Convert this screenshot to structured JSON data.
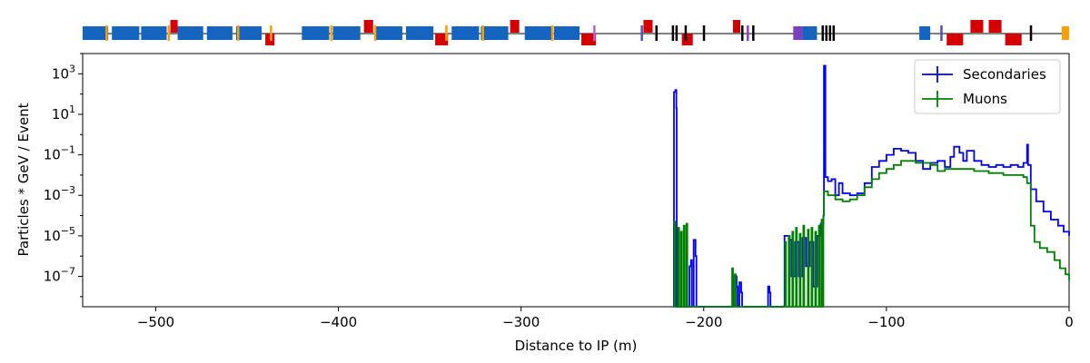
{
  "chart_data": {
    "type": "line",
    "xlabel": "Distance to IP (m)",
    "ylabel": "Particles * GeV / Event",
    "xlim": [
      -540,
      0
    ],
    "ylim_log10": [
      -8.5,
      4
    ],
    "yscale": "log",
    "grid": false,
    "legend_placement": "top-right",
    "x_ticks": [
      -500,
      -400,
      -300,
      -200,
      -100,
      0
    ],
    "x_tick_labels": [
      "−500",
      "−400",
      "−300",
      "−200",
      "−100",
      "0"
    ],
    "y_ticks_exp": [
      3,
      1,
      -1,
      -3,
      -5,
      -7
    ],
    "y_tick_base": "10",
    "y_tick_exponents": [
      "3",
      "1",
      "−1",
      "−3",
      "−5",
      "−7"
    ],
    "series": [
      {
        "name": "Secondaries",
        "color": "#0000ff",
        "points": [
          [
            -216.5,
            -8.5
          ],
          [
            -216.3,
            2.1
          ],
          [
            -215.5,
            2.2
          ],
          [
            -215.0,
            1.3
          ],
          [
            -214.8,
            -8.5
          ],
          [
            -208.0,
            -8.5
          ],
          [
            -207.8,
            -6.5
          ],
          [
            -207.0,
            -6.2
          ],
          [
            -206.5,
            -8.5
          ],
          [
            -206.0,
            -8.5
          ],
          [
            -205.5,
            -5.2
          ],
          [
            -204.5,
            -6.0
          ],
          [
            -204.0,
            -8.5
          ],
          [
            -184.0,
            -8.5
          ],
          [
            -183.8,
            -7.0
          ],
          [
            -182.0,
            -7.5
          ],
          [
            -181.5,
            -8.5
          ],
          [
            -181.0,
            -8.5
          ],
          [
            -180.5,
            -7.3
          ],
          [
            -179.5,
            -7.8
          ],
          [
            -179.0,
            -8.5
          ],
          [
            -165.0,
            -8.5
          ],
          [
            -164.8,
            -7.5
          ],
          [
            -164.0,
            -7.8
          ],
          [
            -163.5,
            -8.5
          ],
          [
            -156.0,
            -8.5
          ],
          [
            -155.8,
            -5.0
          ],
          [
            -153.0,
            -5.2
          ],
          [
            -152.0,
            -7.0
          ],
          [
            -150.0,
            -5.3
          ],
          [
            -148.0,
            -7.0
          ],
          [
            -146.0,
            -5.1
          ],
          [
            -144.0,
            -6.5
          ],
          [
            -142.0,
            -5.3
          ],
          [
            -140.0,
            -7.5
          ],
          [
            -138.0,
            -5.0
          ],
          [
            -136.0,
            -4.4
          ],
          [
            -134.5,
            -4.0
          ],
          [
            -134.2,
            3.4
          ],
          [
            -133.6,
            3.4
          ],
          [
            -133.4,
            -2.1
          ],
          [
            -132.0,
            -2.3
          ],
          [
            -130.0,
            -2.2
          ],
          [
            -128.0,
            -3.0
          ],
          [
            -126.0,
            -2.4
          ],
          [
            -124.0,
            -2.9
          ],
          [
            -120.0,
            -3.0
          ],
          [
            -116.0,
            -2.9
          ],
          [
            -112.0,
            -2.4
          ],
          [
            -108.0,
            -1.6
          ],
          [
            -104.0,
            -1.3
          ],
          [
            -100.0,
            -1.0
          ],
          [
            -96.0,
            -0.7
          ],
          [
            -92.0,
            -0.8
          ],
          [
            -88.0,
            -0.9
          ],
          [
            -84.0,
            -1.3
          ],
          [
            -80.0,
            -1.7
          ],
          [
            -76.0,
            -1.4
          ],
          [
            -72.0,
            -1.3
          ],
          [
            -68.0,
            -1.6
          ],
          [
            -65.0,
            -1.1
          ],
          [
            -63.0,
            -0.6
          ],
          [
            -60.0,
            -0.9
          ],
          [
            -58.0,
            -1.3
          ],
          [
            -56.0,
            -0.8
          ],
          [
            -52.0,
            -1.3
          ],
          [
            -48.0,
            -1.5
          ],
          [
            -44.0,
            -1.6
          ],
          [
            -40.0,
            -1.5
          ],
          [
            -36.0,
            -1.6
          ],
          [
            -32.0,
            -1.5
          ],
          [
            -28.0,
            -1.6
          ],
          [
            -25.0,
            -1.4
          ],
          [
            -23.0,
            -0.5
          ],
          [
            -22.5,
            -1.5
          ],
          [
            -21.0,
            -2.7
          ],
          [
            -18.0,
            -3.3
          ],
          [
            -14.0,
            -3.8
          ],
          [
            -10.0,
            -4.2
          ],
          [
            -6.0,
            -4.5
          ],
          [
            -3.0,
            -4.8
          ],
          [
            0.0,
            -5.0
          ]
        ]
      },
      {
        "name": "Muons",
        "color": "#008000",
        "points": [
          [
            -216.5,
            -8.5
          ],
          [
            -216.0,
            -4.3
          ],
          [
            -215.5,
            -8.5
          ],
          [
            -214.0,
            -4.6
          ],
          [
            -213.5,
            -8.5
          ],
          [
            -212.5,
            -4.8
          ],
          [
            -212.0,
            -8.5
          ],
          [
            -211.0,
            -4.5
          ],
          [
            -210.5,
            -8.5
          ],
          [
            -209.5,
            -4.4
          ],
          [
            -209.0,
            -8.5
          ],
          [
            -185.0,
            -8.5
          ],
          [
            -184.5,
            -6.6
          ],
          [
            -184.0,
            -8.5
          ],
          [
            -183.0,
            -6.9
          ],
          [
            -182.5,
            -8.5
          ],
          [
            -156.0,
            -8.5
          ],
          [
            -155.5,
            -5.3
          ],
          [
            -155.0,
            -8.5
          ],
          [
            -153.5,
            -5.0
          ],
          [
            -153.0,
            -8.5
          ],
          [
            -151.5,
            -4.8
          ],
          [
            -151.0,
            -8.5
          ],
          [
            -149.5,
            -4.6
          ],
          [
            -149.0,
            -8.5
          ],
          [
            -147.5,
            -4.9
          ],
          [
            -147.0,
            -8.5
          ],
          [
            -145.5,
            -4.5
          ],
          [
            -145.0,
            -8.5
          ],
          [
            -143.0,
            -4.7
          ],
          [
            -142.5,
            -8.5
          ],
          [
            -141.0,
            -4.6
          ],
          [
            -140.5,
            -8.5
          ],
          [
            -139.0,
            -4.8
          ],
          [
            -138.5,
            -8.5
          ],
          [
            -137.0,
            -4.5
          ],
          [
            -136.5,
            -8.5
          ],
          [
            -135.5,
            -4.2
          ],
          [
            -135.0,
            -8.5
          ],
          [
            -134.5,
            -4.0
          ],
          [
            -134.2,
            -2.8
          ],
          [
            -132.0,
            -3.0
          ],
          [
            -128.0,
            -3.2
          ],
          [
            -124.0,
            -3.3
          ],
          [
            -120.0,
            -3.2
          ],
          [
            -116.0,
            -3.0
          ],
          [
            -112.0,
            -2.6
          ],
          [
            -108.0,
            -2.2
          ],
          [
            -104.0,
            -1.9
          ],
          [
            -100.0,
            -1.7
          ],
          [
            -96.0,
            -1.5
          ],
          [
            -92.0,
            -1.3
          ],
          [
            -88.0,
            -1.3
          ],
          [
            -84.0,
            -1.4
          ],
          [
            -80.0,
            -1.4
          ],
          [
            -76.0,
            -1.5
          ],
          [
            -72.0,
            -1.8
          ],
          [
            -68.0,
            -1.7
          ],
          [
            -64.0,
            -1.7
          ],
          [
            -60.0,
            -1.7
          ],
          [
            -56.0,
            -1.7
          ],
          [
            -52.0,
            -1.8
          ],
          [
            -48.0,
            -1.8
          ],
          [
            -44.0,
            -1.9
          ],
          [
            -40.0,
            -1.9
          ],
          [
            -36.0,
            -2.0
          ],
          [
            -32.0,
            -2.0
          ],
          [
            -28.0,
            -2.0
          ],
          [
            -25.0,
            -2.1
          ],
          [
            -23.0,
            -2.4
          ],
          [
            -21.0,
            -4.5
          ],
          [
            -19.0,
            -5.3
          ],
          [
            -16.0,
            -5.6
          ],
          [
            -12.0,
            -5.8
          ],
          [
            -8.0,
            -6.2
          ],
          [
            -5.0,
            -6.6
          ],
          [
            -2.0,
            -6.9
          ],
          [
            0.0,
            -7.2
          ]
        ]
      }
    ],
    "beamline_elements": [
      {
        "start": -540,
        "end": -526,
        "row": "mid",
        "color": "#1565c0"
      },
      {
        "start": -524,
        "end": -509,
        "row": "mid",
        "color": "#1565c0"
      },
      {
        "start": -508,
        "end": -494,
        "row": "mid",
        "color": "#1565c0"
      },
      {
        "start": -492,
        "end": -488,
        "row": "top",
        "color": "#d50000"
      },
      {
        "start": -488,
        "end": -474,
        "row": "mid",
        "color": "#1565c0"
      },
      {
        "start": -472,
        "end": -458,
        "row": "mid",
        "color": "#1565c0"
      },
      {
        "start": -456,
        "end": -442,
        "row": "mid",
        "color": "#1565c0"
      },
      {
        "start": -440,
        "end": -435,
        "row": "bot",
        "color": "#d50000"
      },
      {
        "start": -420,
        "end": -405,
        "row": "mid",
        "color": "#1565c0"
      },
      {
        "start": -403,
        "end": -388,
        "row": "mid",
        "color": "#1565c0"
      },
      {
        "start": -386,
        "end": -381,
        "row": "top",
        "color": "#d50000"
      },
      {
        "start": -380,
        "end": -365,
        "row": "mid",
        "color": "#1565c0"
      },
      {
        "start": -363,
        "end": -348,
        "row": "mid",
        "color": "#1565c0"
      },
      {
        "start": -347,
        "end": -340,
        "row": "bot",
        "color": "#d50000"
      },
      {
        "start": -338,
        "end": -323,
        "row": "mid",
        "color": "#1565c0"
      },
      {
        "start": -322,
        "end": -307,
        "row": "mid",
        "color": "#1565c0"
      },
      {
        "start": -306,
        "end": -301,
        "row": "top",
        "color": "#d50000"
      },
      {
        "start": -298,
        "end": -283,
        "row": "mid",
        "color": "#1565c0"
      },
      {
        "start": -282,
        "end": -268,
        "row": "mid",
        "color": "#1565c0"
      },
      {
        "start": -267,
        "end": -259,
        "row": "bot",
        "color": "#d50000"
      },
      {
        "start": -233,
        "end": -228,
        "row": "top",
        "color": "#d50000"
      },
      {
        "start": -212,
        "end": -206,
        "row": "bot",
        "color": "#d50000"
      },
      {
        "start": -184,
        "end": -180,
        "row": "top",
        "color": "#d50000"
      },
      {
        "start": -151,
        "end": -146,
        "row": "mid",
        "color": "#7b3fc0"
      },
      {
        "start": -146,
        "end": -138,
        "row": "mid",
        "color": "#1565c0"
      },
      {
        "start": -82,
        "end": -76,
        "row": "mid",
        "color": "#1565c0"
      },
      {
        "start": -67,
        "end": -58,
        "row": "bot",
        "color": "#d50000"
      },
      {
        "start": -54,
        "end": -47,
        "row": "top",
        "color": "#d50000"
      },
      {
        "start": -44,
        "end": -37,
        "row": "top",
        "color": "#d50000"
      },
      {
        "start": -35,
        "end": -26,
        "row": "bot",
        "color": "#d50000"
      },
      {
        "start": -4,
        "end": 0,
        "row": "mid",
        "color": "#ffa000"
      }
    ],
    "beamline_markers": [
      {
        "x": -527,
        "color": "#ffa000"
      },
      {
        "x": -493,
        "color": "#ffa000"
      },
      {
        "x": -455,
        "color": "#ffa000"
      },
      {
        "x": -437,
        "color": "#ffa000"
      },
      {
        "x": -404,
        "color": "#ffa000"
      },
      {
        "x": -380,
        "color": "#ffa000"
      },
      {
        "x": -341,
        "color": "#ffa000"
      },
      {
        "x": -321,
        "color": "#ffa000"
      },
      {
        "x": -283,
        "color": "#ffa000"
      },
      {
        "x": -260,
        "color": "#c060d0"
      },
      {
        "x": -234,
        "color": "#5050c0"
      },
      {
        "x": -226,
        "color": "#000000"
      },
      {
        "x": -217,
        "color": "#000000"
      },
      {
        "x": -215,
        "color": "#000000"
      },
      {
        "x": -210,
        "color": "#000000"
      },
      {
        "x": -200,
        "color": "#000000"
      },
      {
        "x": -179,
        "color": "#000000"
      },
      {
        "x": -176,
        "color": "#9040c0"
      },
      {
        "x": -173,
        "color": "#000000"
      },
      {
        "x": -135,
        "color": "#000000"
      },
      {
        "x": -133,
        "color": "#000000"
      },
      {
        "x": -131,
        "color": "#000000"
      },
      {
        "x": -129,
        "color": "#000000"
      },
      {
        "x": -70,
        "color": "#5050c0"
      },
      {
        "x": -21,
        "color": "#000000"
      }
    ]
  }
}
